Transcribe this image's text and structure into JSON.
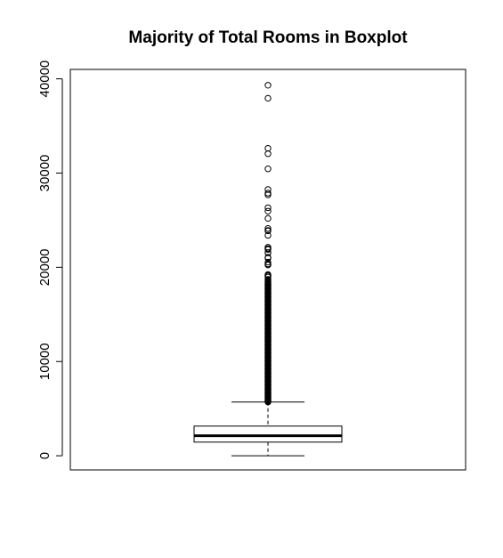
{
  "chart_data": {
    "type": "boxplot",
    "title": "Majority of Total Rooms in Boxplot",
    "xlabel": "",
    "ylabel": "",
    "ylim": [
      -1500,
      41000
    ],
    "yticks": [
      0,
      10000,
      20000,
      30000,
      40000
    ],
    "ytick_labels": [
      "0",
      "10000",
      "20000",
      "30000",
      "40000"
    ],
    "grid": false,
    "legend": "none",
    "box": {
      "min": 2,
      "q1": 1448,
      "median": 2127,
      "q3": 3148,
      "whisker_high": 5698
    },
    "outliers_sparse": [
      39320,
      37937,
      32627,
      32054,
      30450,
      28258,
      27870,
      27700,
      26322,
      25957,
      25187,
      24121,
      23915,
      23866,
      23389,
      22128,
      21988,
      21897,
      21560,
      21533,
      21060,
      20982,
      20544,
      20354,
      20263,
      20256,
      19234,
      19141,
      19090,
      18963,
      18715,
      18634,
      18448
    ],
    "outliers_dense_range": [
      5700,
      18400
    ],
    "colors": {
      "stroke": "#000000",
      "background": "#ffffff"
    }
  }
}
